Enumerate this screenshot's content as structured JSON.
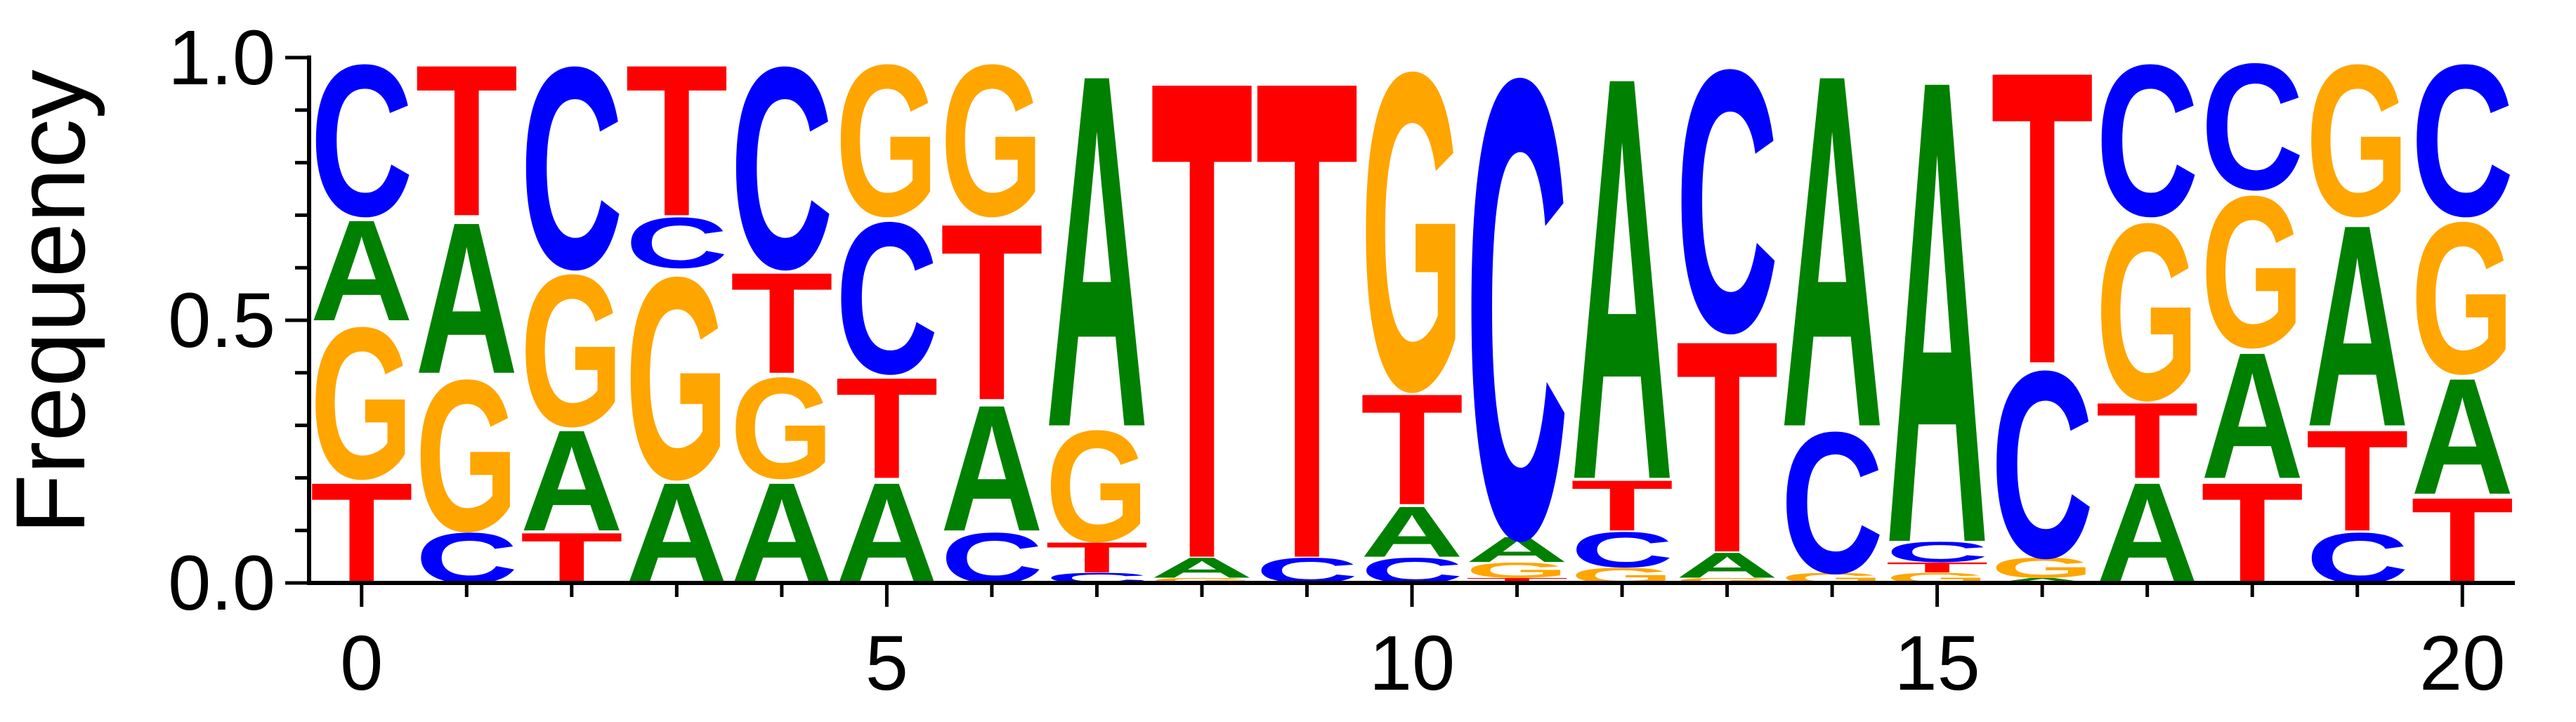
{
  "chart_data": {
    "type": "sequence-logo",
    "ylabel": "Frequency",
    "xlabel": "",
    "title": "",
    "ylim": [
      0,
      1.0
    ],
    "xlim": [
      -0.5,
      20.5
    ],
    "x_ticks": [
      0,
      5,
      10,
      15,
      20
    ],
    "y_ticks": [
      0.0,
      0.5,
      1.0
    ],
    "y_tick_labels": [
      "0.0",
      "0.5",
      "1.0"
    ],
    "letter_colors": {
      "A": "#008000",
      "C": "#0000ff",
      "G": "#ffa500",
      "T": "#ff0000"
    },
    "positions": [
      {
        "x": 0,
        "stack": [
          [
            "T",
            0.2
          ],
          [
            "G",
            0.3
          ],
          [
            "A",
            0.2
          ],
          [
            "C",
            0.3
          ]
        ]
      },
      {
        "x": 1,
        "stack": [
          [
            "C",
            0.1
          ],
          [
            "G",
            0.3
          ],
          [
            "A",
            0.3
          ],
          [
            "T",
            0.3
          ]
        ]
      },
      {
        "x": 2,
        "stack": [
          [
            "T",
            0.1
          ],
          [
            "A",
            0.2
          ],
          [
            "G",
            0.3
          ],
          [
            "C",
            0.4
          ]
        ]
      },
      {
        "x": 3,
        "stack": [
          [
            "A",
            0.2
          ],
          [
            "G",
            0.4
          ],
          [
            "C",
            0.1
          ],
          [
            "T",
            0.3
          ]
        ]
      },
      {
        "x": 4,
        "stack": [
          [
            "A",
            0.2
          ],
          [
            "G",
            0.2
          ],
          [
            "T",
            0.2
          ],
          [
            "C",
            0.4
          ]
        ]
      },
      {
        "x": 5,
        "stack": [
          [
            "A",
            0.2
          ],
          [
            "T",
            0.2
          ],
          [
            "C",
            0.3
          ],
          [
            "G",
            0.3
          ]
        ]
      },
      {
        "x": 6,
        "stack": [
          [
            "C",
            0.1
          ],
          [
            "A",
            0.25
          ],
          [
            "T",
            0.35
          ],
          [
            "G",
            0.3
          ]
        ]
      },
      {
        "x": 7,
        "stack": [
          [
            "C",
            0.02
          ],
          [
            "T",
            0.06
          ],
          [
            "G",
            0.22
          ],
          [
            "A",
            0.7
          ]
        ]
      },
      {
        "x": 8,
        "stack": [
          [
            "G",
            0.01
          ],
          [
            "A",
            0.04
          ],
          [
            "T",
            0.95
          ]
        ]
      },
      {
        "x": 9,
        "stack": [
          [
            "C",
            0.05
          ],
          [
            "T",
            0.95
          ]
        ]
      },
      {
        "x": 10,
        "stack": [
          [
            "C",
            0.05
          ],
          [
            "A",
            0.1
          ],
          [
            "T",
            0.22
          ],
          [
            "G",
            0.63
          ]
        ]
      },
      {
        "x": 11,
        "stack": [
          [
            "T",
            0.01
          ],
          [
            "G",
            0.03
          ],
          [
            "A",
            0.05
          ],
          [
            "C",
            0.91
          ]
        ]
      },
      {
        "x": 12,
        "stack": [
          [
            "G",
            0.03
          ],
          [
            "C",
            0.07
          ],
          [
            "T",
            0.1
          ],
          [
            "A",
            0.8
          ]
        ]
      },
      {
        "x": 13,
        "stack": [
          [
            "G",
            0.01
          ],
          [
            "A",
            0.05
          ],
          [
            "T",
            0.42
          ],
          [
            "C",
            0.52
          ]
        ]
      },
      {
        "x": 14,
        "stack": [
          [
            "G",
            0.02
          ],
          [
            "C",
            0.28
          ],
          [
            "A",
            0.7
          ]
        ]
      },
      {
        "x": 15,
        "stack": [
          [
            "G",
            0.02
          ],
          [
            "T",
            0.02
          ],
          [
            "C",
            0.04
          ],
          [
            "A",
            0.92
          ]
        ]
      },
      {
        "x": 16,
        "stack": [
          [
            "A",
            0.01
          ],
          [
            "G",
            0.04
          ],
          [
            "C",
            0.37
          ],
          [
            "T",
            0.58
          ]
        ]
      },
      {
        "x": 17,
        "stack": [
          [
            "A",
            0.2
          ],
          [
            "T",
            0.15
          ],
          [
            "G",
            0.35
          ],
          [
            "C",
            0.3
          ]
        ]
      },
      {
        "x": 18,
        "stack": [
          [
            "T",
            0.2
          ],
          [
            "A",
            0.25
          ],
          [
            "G",
            0.3
          ],
          [
            "C",
            0.25
          ]
        ]
      },
      {
        "x": 19,
        "stack": [
          [
            "C",
            0.1
          ],
          [
            "T",
            0.2
          ],
          [
            "A",
            0.4
          ],
          [
            "G",
            0.3
          ]
        ]
      },
      {
        "x": 20,
        "stack": [
          [
            "T",
            0.17
          ],
          [
            "A",
            0.23
          ],
          [
            "G",
            0.3
          ],
          [
            "C",
            0.3
          ]
        ]
      }
    ]
  }
}
